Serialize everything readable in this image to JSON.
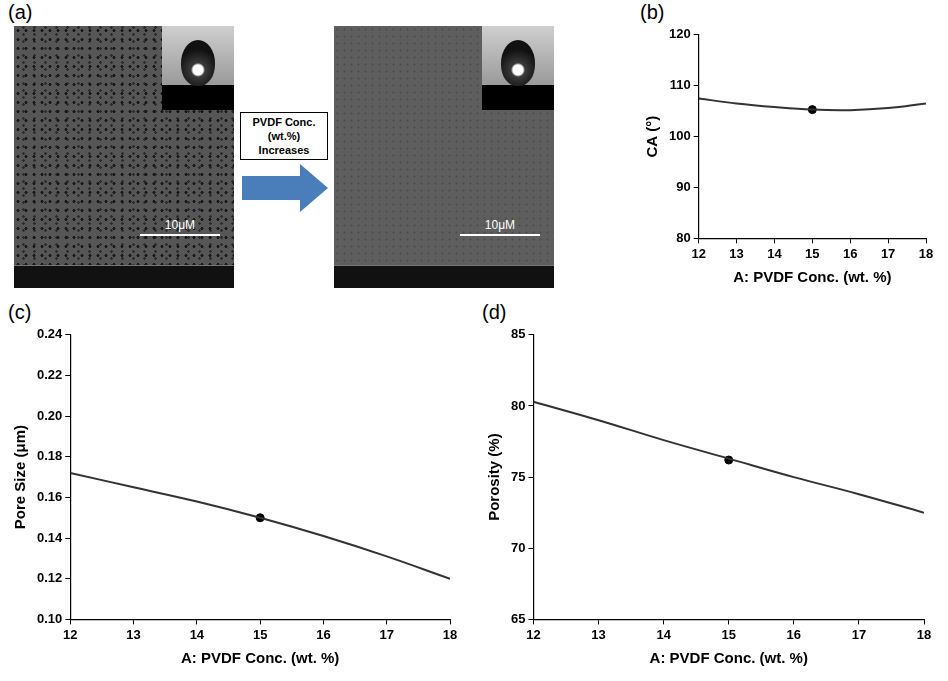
{
  "panel_a": {
    "label": "(a)",
    "arrow_text": "PVDF Conc.(wt.%) Increases",
    "scale_bars": [
      "10μM",
      "10μM"
    ]
  },
  "chart_data": [
    {
      "panel": "(b)",
      "type": "line",
      "x_label": "A: PVDF Conc. (wt. %)",
      "y_label": "CA (°)",
      "xlim": [
        12,
        18
      ],
      "xticks": [
        12,
        13,
        14,
        15,
        16,
        17,
        18
      ],
      "ylim": [
        80,
        120
      ],
      "yticks": [
        80,
        90,
        100,
        110,
        120
      ],
      "grid": false,
      "series": [
        {
          "x": [
            12,
            13,
            14,
            15,
            16,
            17,
            18
          ],
          "values": [
            107.5,
            106.5,
            105.8,
            105.3,
            105.2,
            105.6,
            106.5
          ],
          "color": "#333333",
          "line_style": "solid",
          "marker": "none"
        },
        {
          "type": "scatter",
          "x": [
            15
          ],
          "values": [
            105.3
          ],
          "color": "#000000",
          "marker": "circle"
        }
      ]
    },
    {
      "panel": "(c)",
      "type": "line",
      "x_label": "A: PVDF Conc. (wt. %)",
      "y_label": "Pore Size (μm)",
      "xlim": [
        12,
        18
      ],
      "xticks": [
        12,
        13,
        14,
        15,
        16,
        17,
        18
      ],
      "ylim": [
        0.1,
        0.24
      ],
      "yticks": [
        {
          "value": 0.1,
          "label": "0.10"
        },
        {
          "value": 0.12,
          "label": "0.12"
        },
        {
          "value": 0.14,
          "label": "0.14"
        },
        {
          "value": 0.16,
          "label": "0.16"
        },
        {
          "value": 0.18,
          "label": "0.18"
        },
        {
          "value": 0.2,
          "label": "0.20"
        },
        {
          "value": 0.22,
          "label": "0.22"
        },
        {
          "value": 0.24,
          "label": "0.24"
        }
      ],
      "grid": false,
      "series": [
        {
          "x": [
            12,
            13,
            14,
            15,
            16,
            17,
            18
          ],
          "values": [
            0.172,
            0.165,
            0.158,
            0.15,
            0.141,
            0.131,
            0.12
          ],
          "color": "#333333",
          "line_style": "solid",
          "marker": "none"
        },
        {
          "type": "scatter",
          "x": [
            15
          ],
          "values": [
            0.15
          ],
          "color": "#000000",
          "marker": "circle"
        }
      ]
    },
    {
      "panel": "(d)",
      "type": "line",
      "x_label": "A: PVDF Conc. (wt. %)",
      "y_label": "Porosity (%)",
      "xlim": [
        12,
        18
      ],
      "xticks": [
        12,
        13,
        14,
        15,
        16,
        17,
        18
      ],
      "ylim": [
        65,
        85
      ],
      "yticks": [
        65,
        70,
        75,
        80,
        85
      ],
      "grid": false,
      "series": [
        {
          "x": [
            12,
            13,
            14,
            15,
            16,
            17,
            18
          ],
          "values": [
            80.3,
            79.0,
            77.6,
            76.3,
            75.0,
            73.8,
            72.5
          ],
          "color": "#333333",
          "line_style": "solid",
          "marker": "none"
        },
        {
          "type": "scatter",
          "x": [
            15
          ],
          "values": [
            76.2
          ],
          "color": "#000000",
          "marker": "circle"
        }
      ]
    }
  ]
}
